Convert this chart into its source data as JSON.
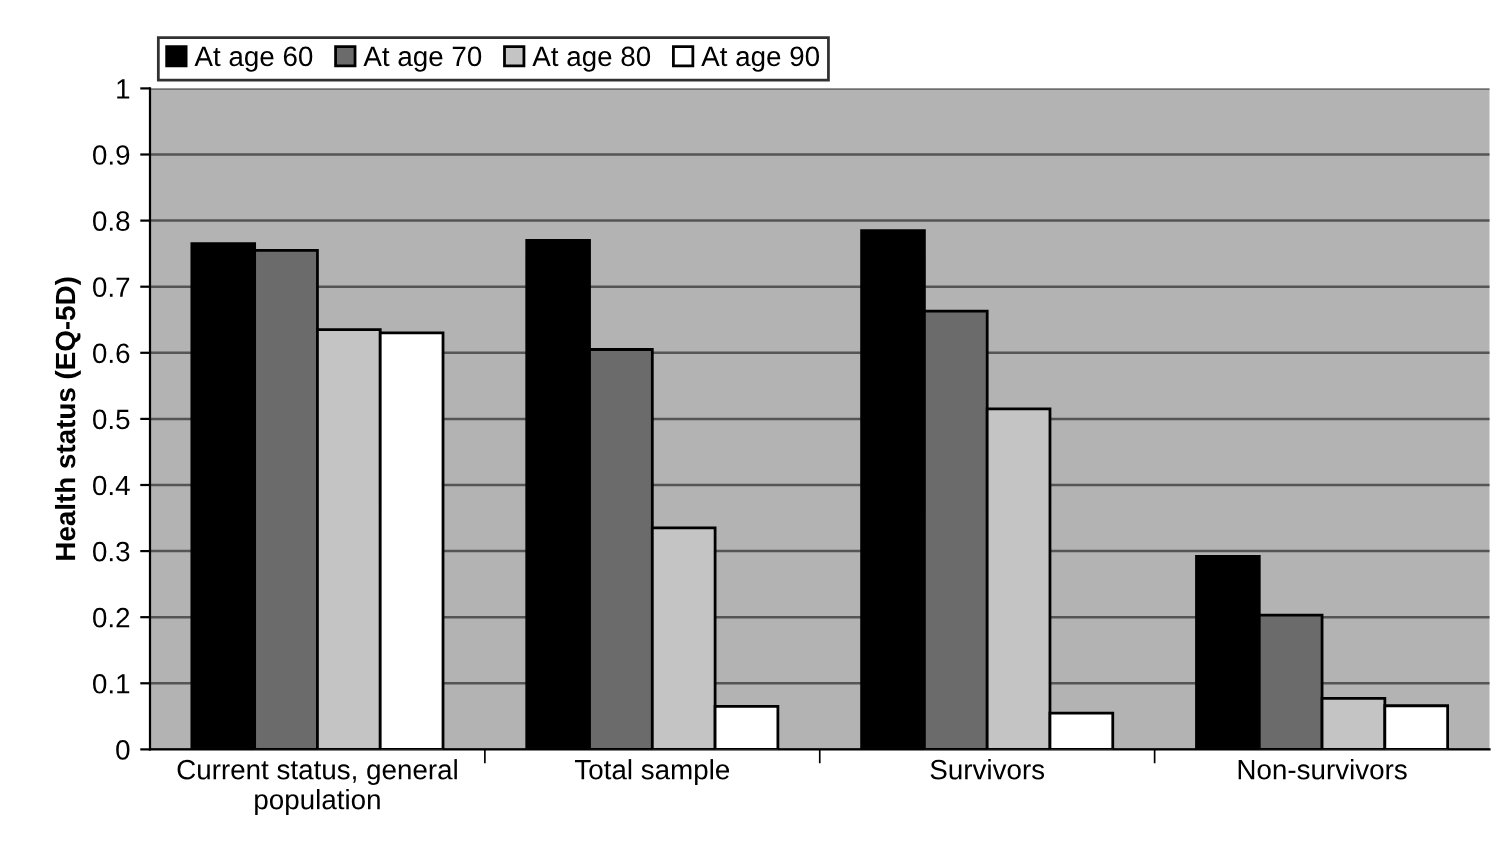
{
  "chart_data": {
    "type": "bar",
    "ylabel": "Health status (EQ-5D)",
    "categories": [
      "Current status, general\npopulation",
      "Total sample",
      "Survivors",
      "Non-survivors"
    ],
    "series": [
      {
        "name": "At age 60",
        "color": "#000000",
        "values": [
          0.765,
          0.77,
          0.785,
          0.292
        ]
      },
      {
        "name": "At age 70",
        "color": "#6b6b6b",
        "values": [
          0.755,
          0.605,
          0.663,
          0.203
        ]
      },
      {
        "name": "At age 80",
        "color": "#c4c4c4",
        "values": [
          0.635,
          0.335,
          0.515,
          0.077
        ]
      },
      {
        "name": "At age 90",
        "color": "#ffffff",
        "values": [
          0.63,
          0.065,
          0.055,
          0.066
        ]
      }
    ],
    "ylim": [
      0,
      1
    ],
    "yticks": [
      0,
      0.1,
      0.2,
      0.3,
      0.4,
      0.5,
      0.6,
      0.7,
      0.8,
      0.9,
      1
    ],
    "grid": "y",
    "legend": "top left"
  }
}
